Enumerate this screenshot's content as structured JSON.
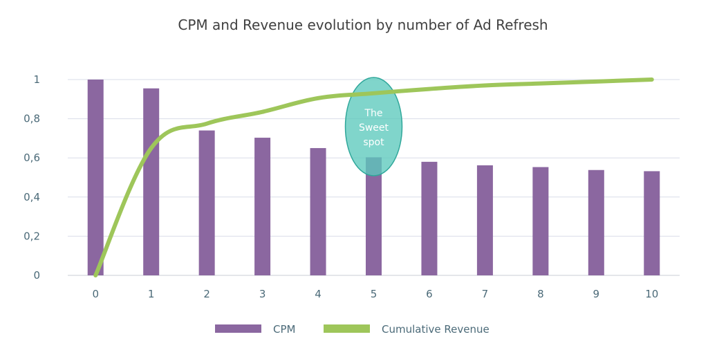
{
  "chart_data": {
    "type": "bar",
    "title": "CPM and Revenue evolution by number of Ad Refresh",
    "xlabel": "",
    "ylabel": "",
    "categories": [
      "0",
      "1",
      "2",
      "3",
      "4",
      "5",
      "6",
      "7",
      "8",
      "9",
      "10"
    ],
    "ylim": [
      0,
      1
    ],
    "y_ticks": [
      "0",
      "0,2",
      "0,4",
      "0,6",
      "0,8",
      "1"
    ],
    "grid": true,
    "legend_position": "bottom",
    "series": [
      {
        "name": "CPM",
        "type": "bar",
        "color": "#8b67a0",
        "values": [
          1.0,
          0.955,
          0.74,
          0.703,
          0.65,
          0.603,
          0.58,
          0.562,
          0.553,
          0.538,
          0.532
        ]
      },
      {
        "name": "Cumulative Revenue",
        "type": "line",
        "color": "#9ec65a",
        "values": [
          0.0,
          0.65,
          0.775,
          0.835,
          0.905,
          0.93,
          0.952,
          0.97,
          0.98,
          0.99,
          1.0
        ]
      }
    ],
    "annotations": [
      {
        "text_lines": [
          "The",
          "Sweet",
          "spot"
        ],
        "category": "5",
        "shape": "ellipse",
        "color": "#5cc9bd"
      }
    ]
  }
}
